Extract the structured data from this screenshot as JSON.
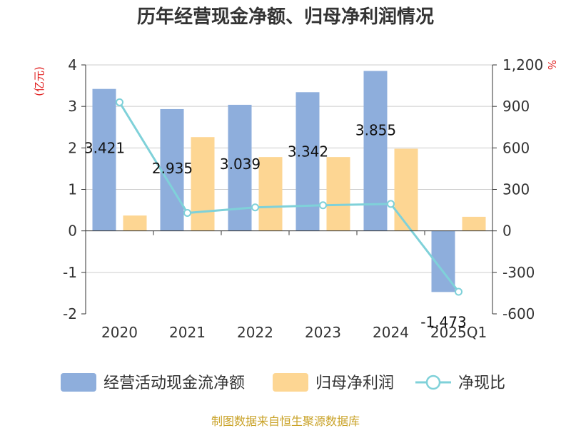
{
  "colors": {
    "cash_flow": "#8eaedc",
    "net_profit": "#fdd693",
    "ratio": "#7fd1d9",
    "axis": "#333333",
    "grid": "#cccccc",
    "unit": "#e02020",
    "source": "#c9a227"
  },
  "chart_data": {
    "type": "bar",
    "title": "历年经营现金净额、归母净利润情况",
    "left_unit": "(亿元)",
    "right_unit": "%",
    "categories": [
      "2020",
      "2021",
      "2022",
      "2023",
      "2024",
      "2025Q1"
    ],
    "ylim_left": [
      -2,
      4
    ],
    "yticks_left": [
      "4",
      "3",
      "2",
      "1",
      "0",
      "-1",
      "-2"
    ],
    "ylim_right": [
      -600,
      1200
    ],
    "yticks_right": [
      "1,200",
      "900",
      "600",
      "300",
      "0",
      "-300",
      "-600"
    ],
    "grid": true,
    "legend_position": "bottom",
    "series": [
      {
        "name": "经营活动现金流净额",
        "kind": "bar",
        "axis": "left",
        "values": [
          3.421,
          2.935,
          3.039,
          3.342,
          3.855,
          -1.473
        ],
        "labels": [
          "3.421",
          "2.935",
          "3.039",
          "3.342",
          "3.855",
          "-1.473"
        ]
      },
      {
        "name": "归母净利润",
        "kind": "bar",
        "axis": "left",
        "values": [
          0.37,
          2.26,
          1.78,
          1.78,
          1.98,
          0.34
        ]
      },
      {
        "name": "净现比",
        "kind": "line",
        "axis": "right",
        "values": [
          930,
          130,
          170,
          185,
          195,
          -440
        ]
      }
    ],
    "source": "制图数据来自恒生聚源数据库"
  }
}
